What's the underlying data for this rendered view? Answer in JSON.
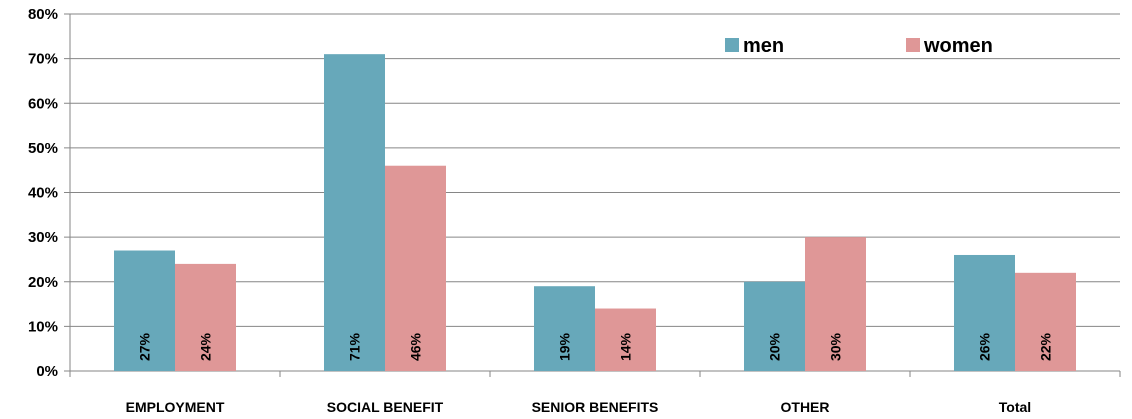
{
  "chart_data": {
    "type": "bar",
    "categories": [
      "EMPLOYMENT",
      "SOCIAL BENEFIT",
      "SENIOR BENEFITS",
      "OTHER",
      "Total"
    ],
    "series": [
      {
        "name": "men",
        "values": [
          27,
          71,
          19,
          20,
          26
        ],
        "labels": [
          "27%",
          "71%",
          "19%",
          "20%",
          "26%"
        ],
        "color": "#67A8BA"
      },
      {
        "name": "women",
        "values": [
          24,
          46,
          14,
          30,
          22
        ],
        "labels": [
          "24%",
          "46%",
          "14%",
          "30%",
          "22%"
        ],
        "color": "#DF9797"
      }
    ],
    "yticks": [
      "0%",
      "10%",
      "20%",
      "30%",
      "40%",
      "50%",
      "60%",
      "70%",
      "80%"
    ],
    "ylim": [
      0,
      80
    ],
    "grid": true,
    "legend_position": "top-right",
    "title": "",
    "xlabel": "",
    "ylabel": ""
  }
}
